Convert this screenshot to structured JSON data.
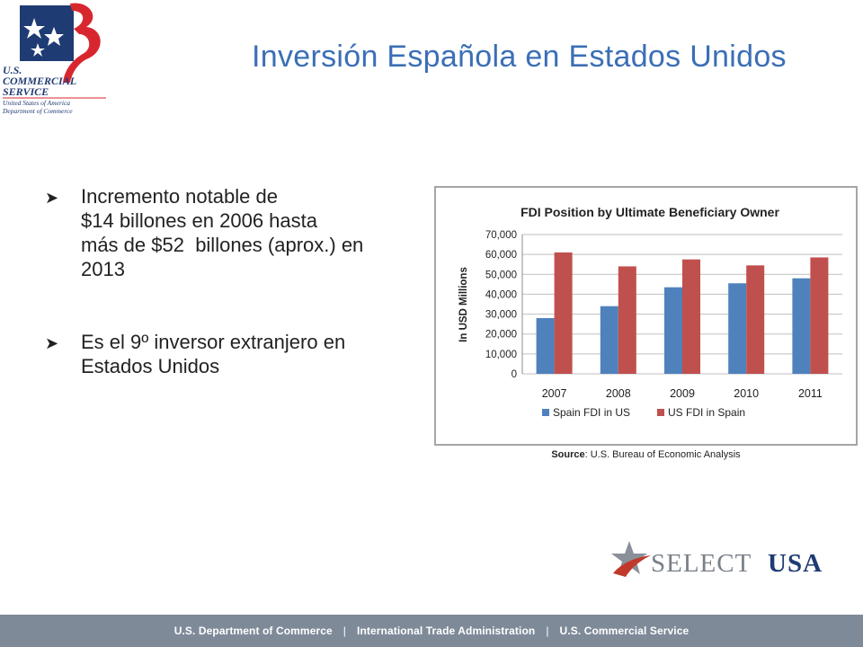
{
  "header": {
    "title": "Inversión Española en Estados Unidos",
    "logo_text": [
      "U.S.",
      "COMMERCIAL",
      "SERVICE",
      "United States of America",
      "Department of Commerce"
    ]
  },
  "bullets": [
    {
      "line1": "Incremento notable de",
      "line2": "$14 billones en 2006 hasta",
      "line3": "más de $52  billones (aprox.) en",
      "line4": "2013"
    },
    {
      "line1": "Es el 9º inversor extranjero en",
      "line2": "Estados Unidos"
    }
  ],
  "chart_data": {
    "type": "bar",
    "title": "FDI Position by Ultimate Beneficiary Owner",
    "ylabel": "In USD Millions",
    "xlabel": "",
    "categories": [
      "2007",
      "2008",
      "2009",
      "2010",
      "2011"
    ],
    "series": [
      {
        "name": "Spain FDI in US",
        "color": "#4f81bd",
        "values": [
          28000,
          34000,
          43500,
          45500,
          48000
        ]
      },
      {
        "name": "US FDI in Spain",
        "color": "#c0504d",
        "values": [
          61000,
          54000,
          57500,
          54500,
          58500
        ]
      }
    ],
    "ylim": [
      0,
      70000
    ],
    "yticks": [
      "0",
      "10,000",
      "20,000",
      "30,000",
      "40,000",
      "50,000",
      "60,000",
      "70,000"
    ],
    "grid": true,
    "legend": "bottom"
  },
  "source": {
    "label": "Source",
    "text": ": U.S. Bureau of Economic Analysis"
  },
  "selectusa": {
    "part1": "SELECT",
    "part2": "USA"
  },
  "footer": {
    "items": [
      "U.S. Department of Commerce",
      "International Trade Administration",
      "U.S. Commercial Service"
    ],
    "separator": "|"
  },
  "colors": {
    "title": "#3b6fb6",
    "footer_bg": "#7f8a99",
    "logo_red": "#d8262f",
    "logo_navy": "#1f3b73"
  }
}
